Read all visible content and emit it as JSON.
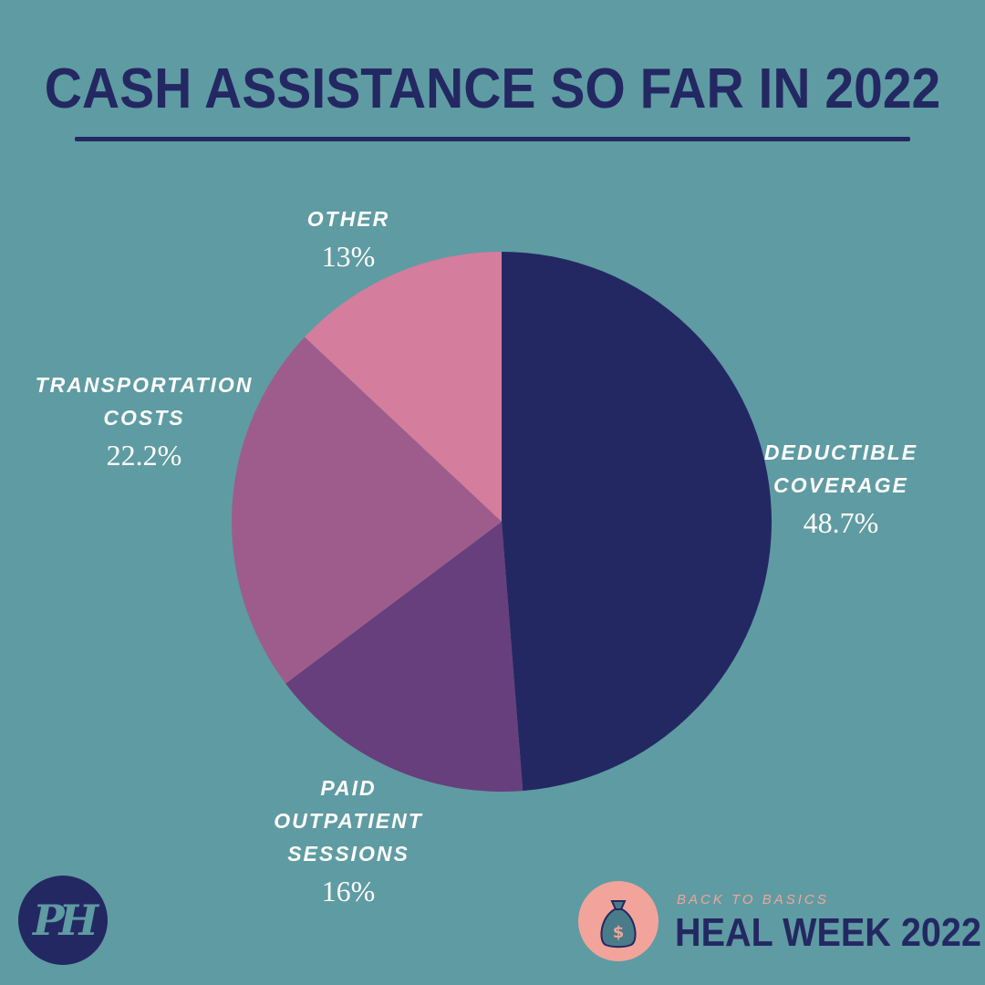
{
  "header": {
    "title": "CASH ASSISTANCE SO FAR IN 2022"
  },
  "chart_data": {
    "type": "pie",
    "title": "CASH ASSISTANCE SO FAR IN 2022",
    "slices": [
      {
        "label": "DEDUCTIBLE\nCOVERAGE",
        "value_label": "48.7%",
        "value": 48.7,
        "color": "#232862"
      },
      {
        "label": "PAID\nOUTPATIENT\nSESSIONS",
        "value_label": "16%",
        "value": 16,
        "color": "#673f7c"
      },
      {
        "label": "TRANSPORTATION\nCOSTS",
        "value_label": "22.2%",
        "value": 22.2,
        "color": "#9e5c8c"
      },
      {
        "label": "OTHER",
        "value_label": "13%",
        "value": 13,
        "color": "#d47d9c"
      }
    ],
    "start": "12 o'clock",
    "direction": "clockwise"
  },
  "footer": {
    "logo_text": "PH",
    "kicker": "BACK TO BASICS",
    "event": "HEAL WEEK 2022",
    "badge_icon": "money-bag-icon",
    "badge_symbol": "$"
  },
  "colors": {
    "background": "#5f9ba2",
    "navy": "#232862",
    "pink": "#f2a49a"
  }
}
